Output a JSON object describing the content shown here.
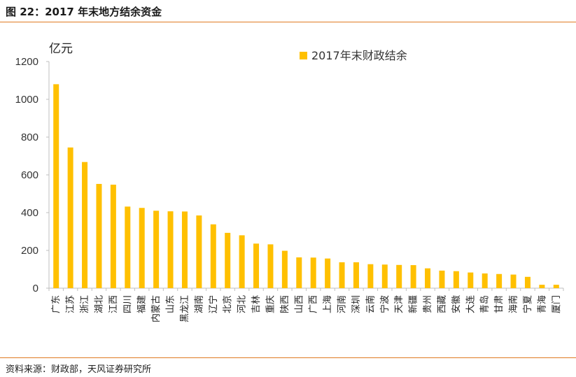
{
  "figure": {
    "title": "图 22：2017 年末地方结余资金",
    "source": "资料来源：财政部，天风证券研究所"
  },
  "colors": {
    "bar": "#FFC000",
    "rule": "#E07B22",
    "axis": "#BFBFBF"
  },
  "chart_data": {
    "type": "bar",
    "title": "",
    "ylabel": "亿元",
    "xlabel": "",
    "ylim": [
      0,
      1200
    ],
    "yticks": [
      0,
      200,
      400,
      600,
      800,
      1000,
      1200
    ],
    "grid": false,
    "legend_position": "top-right",
    "categories": [
      "广东",
      "江苏",
      "浙江",
      "湖北",
      "江西",
      "四川",
      "福建",
      "内蒙古",
      "山东",
      "黑龙江",
      "湖南",
      "辽宁",
      "北京",
      "河北",
      "吉林",
      "重庆",
      "陕西",
      "山西",
      "广西",
      "上海",
      "河南",
      "深圳",
      "云南",
      "宁波",
      "天津",
      "新疆",
      "贵州",
      "西藏",
      "安徽",
      "大连",
      "青岛",
      "甘肃",
      "海南",
      "宁夏",
      "青海",
      "厦门"
    ],
    "series": [
      {
        "name": "2017年末财政结余",
        "values": [
          1080,
          745,
          668,
          552,
          548,
          432,
          425,
          410,
          407,
          406,
          385,
          338,
          293,
          280,
          236,
          232,
          198,
          163,
          162,
          157,
          137,
          137,
          127,
          125,
          123,
          122,
          105,
          93,
          90,
          83,
          78,
          75,
          72,
          60,
          18,
          18
        ]
      }
    ]
  }
}
